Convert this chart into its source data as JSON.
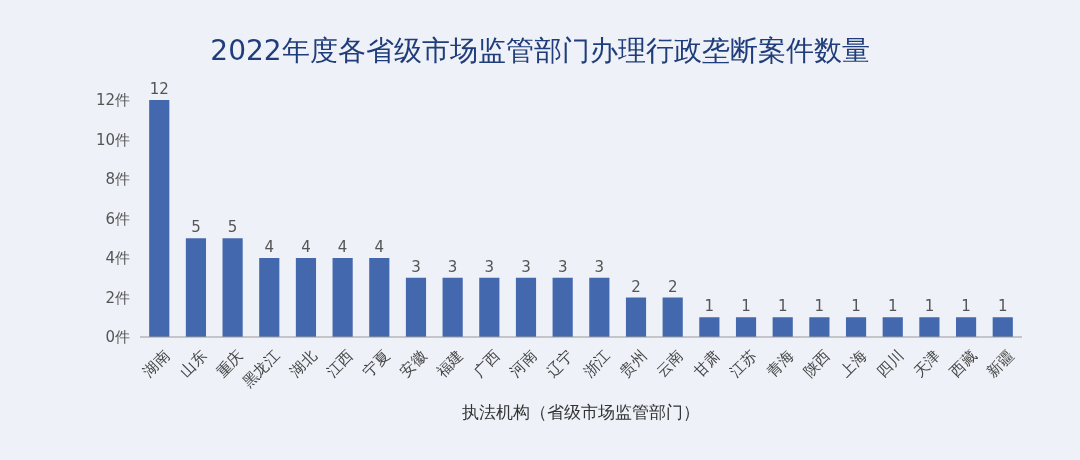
{
  "chart_data": {
    "type": "bar",
    "title": "2022年度各省级市场监管部门办理行政垄断案件数量",
    "xlabel": "执法机构（省级市场监管部门）",
    "categories": [
      "湖南",
      "山东",
      "重庆",
      "黑龙江",
      "湖北",
      "江西",
      "宁夏",
      "安徽",
      "福建",
      "广西",
      "河南",
      "辽宁",
      "浙江",
      "贵州",
      "云南",
      "甘肃",
      "江苏",
      "青海",
      "陕西",
      "上海",
      "四川",
      "天津",
      "西藏",
      "新疆"
    ],
    "values": [
      12,
      5,
      5,
      4,
      4,
      4,
      4,
      3,
      3,
      3,
      3,
      3,
      3,
      2,
      2,
      1,
      1,
      1,
      1,
      1,
      1,
      1,
      1,
      1
    ],
    "color": "#4468ae",
    "data_labels": true,
    "grid": false,
    "ylim": [
      0,
      12
    ],
    "yticks": [
      {
        "value": 0,
        "label": "0件"
      },
      {
        "value": 2,
        "label": "2件"
      },
      {
        "value": 4,
        "label": "4件"
      },
      {
        "value": 6,
        "label": "6件"
      },
      {
        "value": 8,
        "label": "8件"
      },
      {
        "value": 10,
        "label": "10件"
      },
      {
        "value": 12,
        "label": "12件"
      }
    ]
  }
}
